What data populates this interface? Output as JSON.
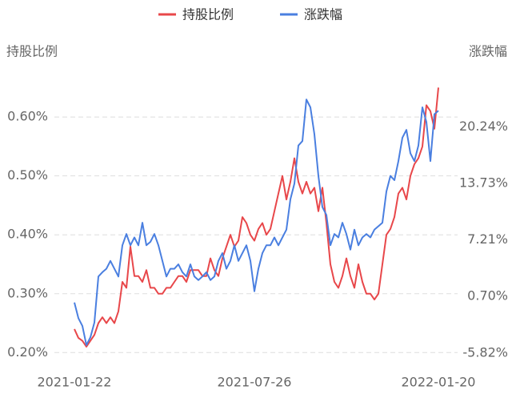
{
  "chart_data": {
    "type": "line",
    "legend_position": "top",
    "y_axis_label": "持股比例",
    "y2_axis_label": "涨跌幅",
    "categories": [
      "2021-01-22",
      null,
      null,
      null,
      null,
      null,
      null,
      null,
      null,
      null,
      null,
      null,
      null,
      null,
      null,
      null,
      null,
      null,
      null,
      null,
      null,
      null,
      null,
      null,
      null,
      null,
      null,
      null,
      null,
      null,
      null,
      null,
      null,
      null,
      null,
      null,
      null,
      null,
      null,
      null,
      null,
      null,
      null,
      null,
      null,
      "2021-07-26",
      null,
      null,
      null,
      null,
      null,
      null,
      null,
      null,
      null,
      null,
      null,
      null,
      null,
      null,
      null,
      null,
      null,
      null,
      null,
      null,
      null,
      null,
      null,
      null,
      null,
      null,
      null,
      null,
      null,
      null,
      null,
      null,
      null,
      null,
      null,
      null,
      null,
      null,
      null,
      null,
      null,
      null,
      null,
      null,
      null,
      "2022-01-20"
    ],
    "series": [
      {
        "name": "持股比例",
        "color": "#e8474a",
        "axis": "y",
        "values": [
          0.24,
          0.225,
          0.22,
          0.21,
          0.22,
          0.23,
          0.25,
          0.26,
          0.25,
          0.26,
          0.25,
          0.27,
          0.32,
          0.31,
          0.38,
          0.33,
          0.33,
          0.32,
          0.34,
          0.31,
          0.31,
          0.3,
          0.3,
          0.31,
          0.31,
          0.32,
          0.33,
          0.33,
          0.32,
          0.34,
          0.34,
          0.34,
          0.33,
          0.33,
          0.36,
          0.34,
          0.33,
          0.36,
          0.38,
          0.4,
          0.38,
          0.39,
          0.43,
          0.42,
          0.4,
          0.39,
          0.41,
          0.42,
          0.4,
          0.41,
          0.44,
          0.47,
          0.5,
          0.46,
          0.49,
          0.53,
          0.49,
          0.47,
          0.49,
          0.47,
          0.48,
          0.44,
          0.48,
          0.42,
          0.35,
          0.32,
          0.31,
          0.33,
          0.36,
          0.33,
          0.31,
          0.35,
          0.32,
          0.3,
          0.3,
          0.29,
          0.3,
          0.35,
          0.4,
          0.41,
          0.43,
          0.47,
          0.48,
          0.46,
          0.5,
          0.52,
          0.53,
          0.55,
          0.62,
          0.61,
          0.58,
          0.65
        ]
      },
      {
        "name": "涨跌幅",
        "color": "#4a7fe0",
        "axis": "y2",
        "values": [
          0,
          -1.8,
          -2.7,
          -4.9,
          -4.0,
          -2.3,
          3.0,
          3.5,
          3.9,
          4.8,
          3.9,
          3.0,
          6.6,
          7.9,
          6.6,
          7.5,
          6.6,
          9.2,
          6.6,
          7.0,
          7.9,
          6.6,
          4.8,
          3.0,
          3.9,
          3.9,
          4.4,
          3.5,
          3.0,
          4.4,
          3.0,
          2.6,
          3.0,
          3.5,
          2.6,
          3.0,
          4.8,
          5.7,
          3.9,
          4.8,
          6.6,
          4.8,
          5.7,
          6.6,
          4.8,
          1.3,
          3.9,
          5.7,
          6.6,
          6.6,
          7.5,
          6.6,
          7.5,
          8.4,
          11.9,
          13.7,
          18.1,
          18.6,
          23.4,
          22.5,
          19.4,
          14.6,
          11.0,
          10.1,
          6.6,
          7.9,
          7.5,
          9.2,
          7.9,
          6.1,
          8.4,
          6.6,
          7.5,
          7.9,
          7.5,
          8.4,
          8.8,
          9.2,
          12.8,
          14.6,
          14.1,
          16.3,
          19.0,
          19.9,
          17.2,
          16.3,
          18.1,
          22.5,
          20.8,
          16.3,
          21.7,
          22.1
        ]
      }
    ],
    "ylim": [
      0.18,
      0.66
    ],
    "yticks": [
      {
        "value": 0.2,
        "label": "0.20%"
      },
      {
        "value": 0.3,
        "label": "0.30%"
      },
      {
        "value": 0.4,
        "label": "0.40%"
      },
      {
        "value": 0.5,
        "label": "0.50%"
      },
      {
        "value": 0.6,
        "label": "0.60%"
      }
    ],
    "y2lim": [
      -7.12,
      25.45
    ],
    "y2ticks": [
      {
        "value": -5.82,
        "label": "-5.82%"
      },
      {
        "value": 0.7,
        "label": "0.70%"
      },
      {
        "value": 7.21,
        "label": "7.21%"
      },
      {
        "value": 13.73,
        "label": "13.73%"
      },
      {
        "value": 20.24,
        "label": "20.24%"
      }
    ],
    "grid": true
  }
}
